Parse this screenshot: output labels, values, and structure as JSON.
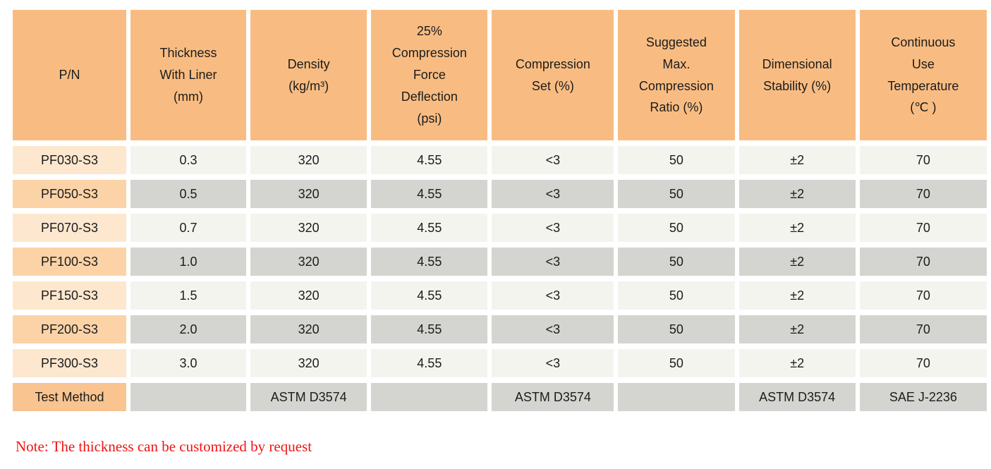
{
  "table": {
    "headers": [
      "P/N",
      "Thickness\nWith Liner\n(mm)",
      "Density\n(kg/m³)",
      "25%\nCompression\nForce\nDeflection\n(psi)",
      "Compression\nSet (%)",
      "Suggested\nMax.\nCompression\nRatio (%)",
      "Dimensional\nStability (%)",
      "Continuous\nUse\nTemperature\n(℃ )"
    ],
    "rows": [
      {
        "pn": "PF030-S3",
        "values": [
          "0.3",
          "320",
          "4.55",
          "<3",
          "50",
          "±2",
          "70"
        ]
      },
      {
        "pn": "PF050-S3",
        "values": [
          "0.5",
          "320",
          "4.55",
          "<3",
          "50",
          "±2",
          "70"
        ]
      },
      {
        "pn": "PF070-S3",
        "values": [
          "0.7",
          "320",
          "4.55",
          "<3",
          "50",
          "±2",
          "70"
        ]
      },
      {
        "pn": "PF100-S3",
        "values": [
          "1.0",
          "320",
          "4.55",
          "<3",
          "50",
          "±2",
          "70"
        ]
      },
      {
        "pn": "PF150-S3",
        "values": [
          "1.5",
          "320",
          "4.55",
          "<3",
          "50",
          "±2",
          "70"
        ]
      },
      {
        "pn": "PF200-S3",
        "values": [
          "2.0",
          "320",
          "4.55",
          "<3",
          "50",
          "±2",
          "70"
        ]
      },
      {
        "pn": "PF300-S3",
        "values": [
          "3.0",
          "320",
          "4.55",
          "<3",
          "50",
          "±2",
          "70"
        ]
      }
    ],
    "footer": {
      "label": "Test Method",
      "values": [
        "",
        "ASTM D3574",
        "",
        "ASTM D3574",
        "",
        "ASTM D3574",
        "SAE J-2236"
      ]
    }
  },
  "note": "Note: The thickness can be customized by request",
  "colors": {
    "header_bg": "#f8bc82",
    "pn_odd_bg": "#fde7ce",
    "pn_even_bg": "#fbd3a7",
    "pn_footer_bg": "#f9c490",
    "value_odd_bg": "#f4f4ef",
    "value_even_bg": "#d4d4d0",
    "note_text": "#ee1414"
  }
}
